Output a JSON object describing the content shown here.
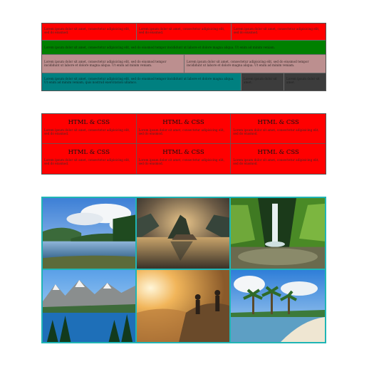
{
  "layout_grid": {
    "row1": [
      "Lorem ipsum dolor sit amet, consectetur adipisicing elit, sed do eiusmod.",
      "Lorem ipsum dolor sit amet, consectetur adipisicing elit, sed do eiusmod.",
      "Lorem ipsum dolor sit amet, consectetur adipisicing elit, sed do eiusmod."
    ],
    "row2": [
      "Lorem ipsum dolor sit amet, consectetur adipisicing elit, sed do eiusmod tempor incididunt ut labore et dolore magna aliqua. Ut enim ad minim veniam."
    ],
    "row3": [
      "Lorem ipsum dolor sit amet, consectetur adipisicing elit, sed do eiusmod tempor incididunt ut labore et dolore magna aliqua. Ut enim ad minim veniam.",
      "Lorem ipsum dolor sit amet, consectetur adipisicing elit, sed do eiusmod tempor incididunt ut labore et dolore magna aliqua. Ut enim ad minim veniam."
    ],
    "row4": [
      "Lorem ipsum dolor sit amet, consectetur adipisicing elit, sed do eiusmod tempor incididunt ut labore et dolore magna aliqua. Ut enim ad minim veniam, quis nostrud exercitation ullamco.",
      "Lorem ipsum dolor sit amet.",
      "Lorem ipsum dolor sit amet."
    ]
  },
  "cards": [
    {
      "title": "HTML & CSS",
      "text": "Lorem ipsum dolor sit amet, consectetur adipisicing elit, sed do eiusmod."
    },
    {
      "title": "HTML & CSS",
      "text": "Lorem ipsum dolor sit amet, consectetur adipisicing elit, sed do eiusmod."
    },
    {
      "title": "HTML & CSS",
      "text": "Lorem ipsum dolor sit amet, consectetur adipisicing elit, sed do eiusmod."
    },
    {
      "title": "HTML & CSS",
      "text": "Lorem ipsum dolor sit amet, consectetur adipisicing elit, sed do eiusmod."
    },
    {
      "title": "HTML & CSS",
      "text": "Lorem ipsum dolor sit amet, consectetur adipisicing elit, sed do eiusmod."
    },
    {
      "title": "HTML & CSS",
      "text": "Lorem ipsum dolor sit amet, consectetur adipisicing elit, sed do eiusmod."
    }
  ],
  "colors": {
    "red": "#ff0000",
    "green": "#008000",
    "rosy": "#bc8f8f",
    "teal": "#008080",
    "dark": "#3c3c3c",
    "gallery_border": "#1fb5b5"
  },
  "gallery": [
    {
      "icon": "river-landscape-photo"
    },
    {
      "icon": "lake-island-sunset-photo"
    },
    {
      "icon": "waterfall-canyon-photo"
    },
    {
      "icon": "mountain-lake-photo"
    },
    {
      "icon": "hikers-sunrise-photo"
    },
    {
      "icon": "tropical-beach-photo"
    }
  ]
}
